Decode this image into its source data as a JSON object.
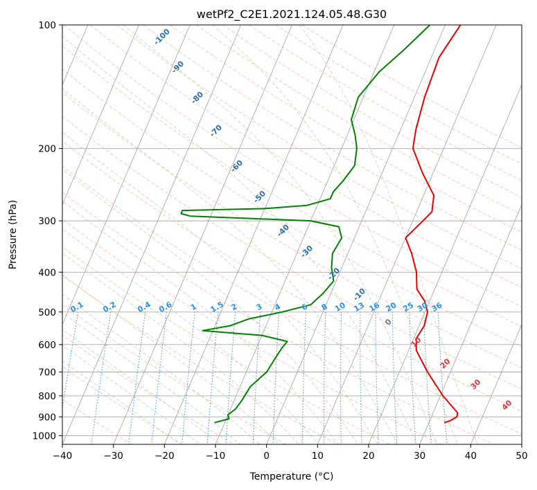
{
  "chart_data": {
    "type": "line",
    "title": "wetPf2_C2E1.2021.124.05.48.G30",
    "xlabel": "Temperature (°C)",
    "ylabel": "Pressure (hPa)",
    "xlim": [
      -40,
      50
    ],
    "ylim": [
      1050,
      100
    ],
    "y_scale": "log",
    "grid": true,
    "x_ticks": [
      "−40",
      "−30",
      "−20",
      "−10",
      "0",
      "10",
      "20",
      "30",
      "40",
      "50"
    ],
    "y_ticks": [
      "100",
      "200",
      "300",
      "400",
      "500",
      "600",
      "700",
      "800",
      "900",
      "1000"
    ],
    "colors": {
      "temperature": "#e60000",
      "dewpoint": "#008000",
      "mixing_ratio": "#2b8fe6",
      "dry_adiabat": "#ff8c69",
      "moist_adiabat": "#9fcf9f",
      "grid": "#a9a9a9"
    },
    "series": [
      {
        "color": "#e60000",
        "points": [
          [
            100,
            3.0
          ],
          [
            120,
            1.5
          ],
          [
            150,
            2.0
          ],
          [
            180,
            3.0
          ],
          [
            200,
            4.0
          ],
          [
            230,
            8.0
          ],
          [
            260,
            12.0
          ],
          [
            285,
            13.0
          ],
          [
            300,
            12.0
          ],
          [
            330,
            10.0
          ],
          [
            360,
            12.5
          ],
          [
            400,
            15.0
          ],
          [
            440,
            16.5
          ],
          [
            470,
            19.0
          ],
          [
            500,
            20.5
          ],
          [
            540,
            21.0
          ],
          [
            580,
            20.5
          ],
          [
            620,
            21.5
          ],
          [
            700,
            25.5
          ],
          [
            800,
            30.5
          ],
          [
            880,
            34.8
          ],
          [
            900,
            35.0
          ],
          [
            920,
            34.0
          ],
          [
            930,
            33.0
          ]
        ]
      },
      {
        "color": "#008000",
        "points": [
          [
            100,
            -3.0
          ],
          [
            115,
            -6.0
          ],
          [
            130,
            -9.0
          ],
          [
            150,
            -11.0
          ],
          [
            170,
            -10.5
          ],
          [
            185,
            -8.5
          ],
          [
            200,
            -7.0
          ],
          [
            220,
            -6.0
          ],
          [
            240,
            -7.0
          ],
          [
            255,
            -8.0
          ],
          [
            265,
            -8.0
          ],
          [
            275,
            -12.0
          ],
          [
            280,
            -20.0
          ],
          [
            283,
            -36.0
          ],
          [
            288,
            -36.0
          ],
          [
            292,
            -34.0
          ],
          [
            300,
            -10.0
          ],
          [
            310,
            -4.0
          ],
          [
            330,
            -2.5
          ],
          [
            360,
            -3.0
          ],
          [
            390,
            -2.0
          ],
          [
            420,
            -0.5
          ],
          [
            450,
            -1.5
          ],
          [
            480,
            -3.0
          ],
          [
            500,
            -8.0
          ],
          [
            520,
            -14.0
          ],
          [
            540,
            -17.0
          ],
          [
            555,
            -22.0
          ],
          [
            570,
            -10.0
          ],
          [
            590,
            -4.5
          ],
          [
            610,
            -5.0
          ],
          [
            650,
            -5.5
          ],
          [
            700,
            -6.0
          ],
          [
            760,
            -8.0
          ],
          [
            820,
            -8.5
          ],
          [
            860,
            -9.0
          ],
          [
            890,
            -10.0
          ],
          [
            910,
            -9.5
          ],
          [
            930,
            -12.0
          ]
        ]
      }
    ],
    "mixing_ratio_labels": [
      "0.1",
      "0.2",
      "0.4",
      "0.6",
      "1",
      "1.5",
      "2",
      "3",
      "4",
      "6",
      "8",
      "10",
      "13",
      "16",
      "20",
      "25",
      "30",
      "36"
    ],
    "dry_adiabat_labels": [
      "-100",
      "-90",
      "-80",
      "-70",
      "-60",
      "-50",
      "-40",
      "-30",
      "-20",
      "-10"
    ],
    "moist_adiabat_labels": [
      "0",
      "10",
      "20",
      "30",
      "40"
    ]
  }
}
